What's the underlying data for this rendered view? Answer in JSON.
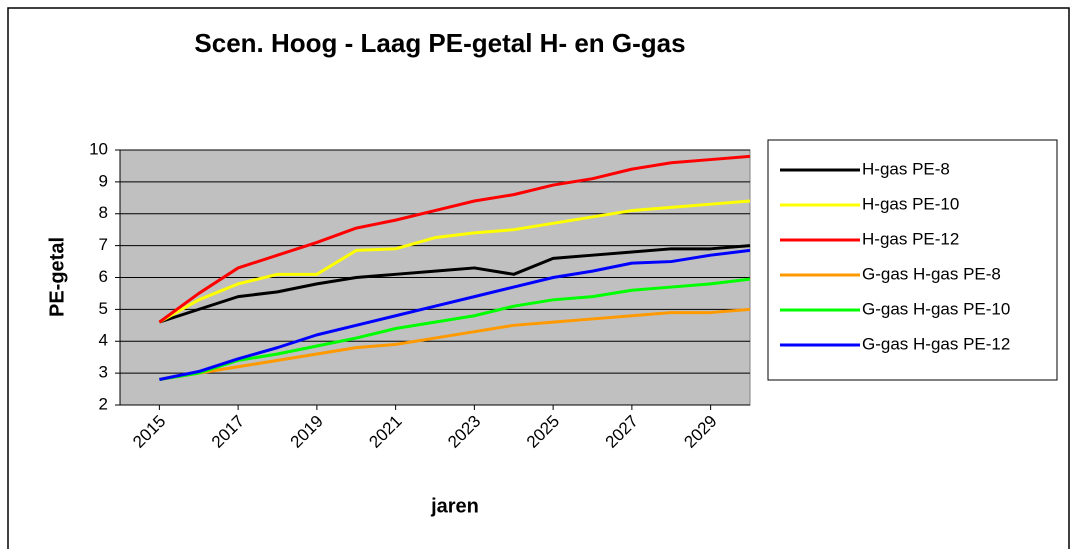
{
  "chart_data": {
    "type": "line",
    "title": "Scen. Hoog - Laag PE-getal H- en G-gas",
    "x_label": "jaren",
    "y_label": "PE-getal",
    "x": [
      2015,
      2016,
      2017,
      2018,
      2019,
      2020,
      2021,
      2022,
      2023,
      2024,
      2025,
      2026,
      2027,
      2028,
      2029,
      2030
    ],
    "xlim": [
      2014,
      2030
    ],
    "xticks": [
      2015,
      2017,
      2019,
      2021,
      2023,
      2025,
      2027,
      2029
    ],
    "ylim": [
      2,
      10
    ],
    "yticks": [
      2,
      3,
      4,
      5,
      6,
      7,
      8,
      9,
      10
    ],
    "grid": true,
    "legend": "right",
    "series": [
      {
        "name": "H-gas PE-8",
        "color": "#000000",
        "values": [
          4.6,
          5.0,
          5.4,
          5.55,
          5.8,
          6.0,
          6.1,
          6.2,
          6.3,
          6.1,
          6.6,
          6.7,
          6.8,
          6.9,
          6.9,
          7.0
        ]
      },
      {
        "name": "H-gas PE-10",
        "color": "#ffff00",
        "values": [
          4.6,
          5.3,
          5.8,
          6.1,
          6.1,
          6.85,
          6.9,
          7.25,
          7.4,
          7.5,
          7.7,
          7.9,
          8.1,
          8.2,
          8.3,
          8.4
        ]
      },
      {
        "name": "H-gas PE-12",
        "color": "#ff0000",
        "values": [
          4.6,
          5.5,
          6.3,
          6.7,
          7.1,
          7.55,
          7.8,
          8.1,
          8.4,
          8.6,
          8.9,
          9.1,
          9.4,
          9.6,
          9.7,
          9.8
        ]
      },
      {
        "name": "G-gas H-gas PE-8",
        "color": "#ff9900",
        "values": [
          2.8,
          3.0,
          3.2,
          3.4,
          3.6,
          3.8,
          3.9,
          4.1,
          4.3,
          4.5,
          4.6,
          4.7,
          4.8,
          4.9,
          4.9,
          5.0
        ]
      },
      {
        "name": "G-gas H-gas PE-10",
        "color": "#00ff00",
        "values": [
          2.8,
          3.0,
          3.4,
          3.6,
          3.85,
          4.1,
          4.4,
          4.6,
          4.8,
          5.1,
          5.3,
          5.4,
          5.6,
          5.7,
          5.8,
          5.95
        ]
      },
      {
        "name": "G-gas H-gas PE-12",
        "color": "#0000ff",
        "values": [
          2.8,
          3.05,
          3.45,
          3.8,
          4.2,
          4.5,
          4.8,
          5.1,
          5.4,
          5.7,
          6.0,
          6.2,
          6.45,
          6.5,
          6.7,
          6.85
        ]
      }
    ]
  }
}
